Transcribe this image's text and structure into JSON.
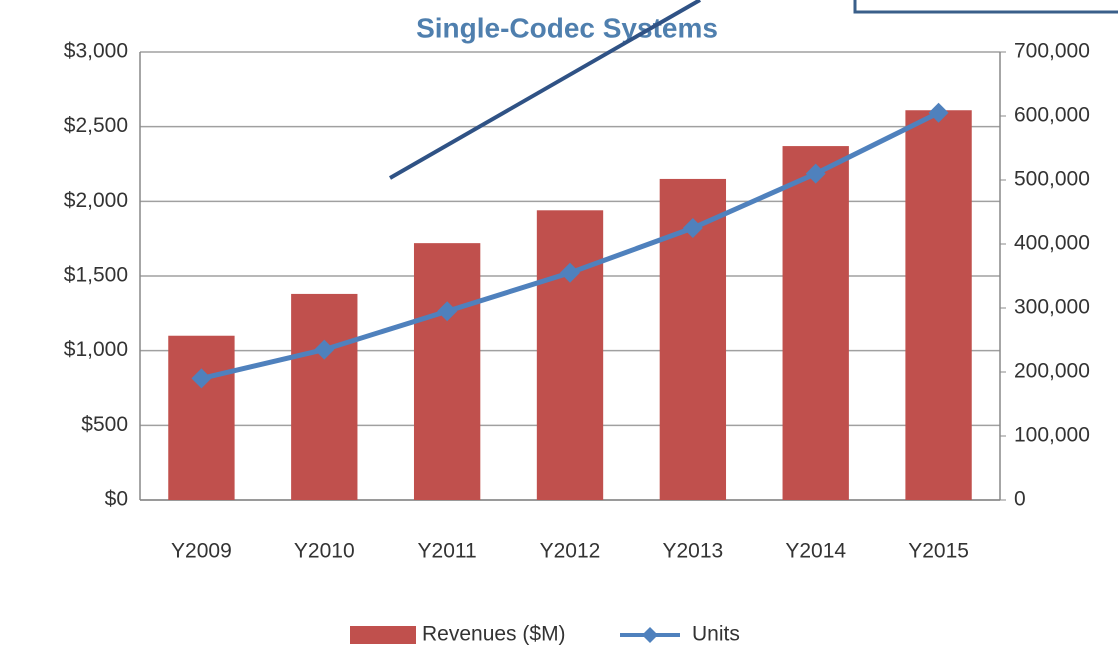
{
  "chart_data": {
    "type": "bar-line",
    "title": "Single-Codec Systems",
    "categories": [
      "Y2009",
      "Y2010",
      "Y2011",
      "Y2012",
      "Y2013",
      "Y2014",
      "Y2015"
    ],
    "series": [
      {
        "name": "Revenues ($M)",
        "type": "bar",
        "color": "#c0504d",
        "values": [
          1100,
          1380,
          1720,
          1940,
          2150,
          2370,
          2610
        ]
      },
      {
        "name": "Units",
        "type": "line",
        "axis": "y2",
        "color": "#4f81bd",
        "values": [
          190000,
          235000,
          295000,
          355000,
          425000,
          510000,
          605000
        ]
      }
    ],
    "ylim": [
      0,
      3000
    ],
    "yticks": [
      {
        "value": 0,
        "label": "$0"
      },
      {
        "value": 500,
        "label": "$500"
      },
      {
        "value": 1000,
        "label": "$1,000"
      },
      {
        "value": 1500,
        "label": "$1,500"
      },
      {
        "value": 2000,
        "label": "$2,000"
      },
      {
        "value": 2500,
        "label": "$2,500"
      },
      {
        "value": 3000,
        "label": "$3,000"
      }
    ],
    "y2lim": [
      0,
      700000
    ],
    "y2ticks": [
      0,
      {
        "value": 100000,
        "label": "100,000"
      },
      {
        "value": 200000,
        "label": "200,000"
      },
      {
        "value": 300000,
        "label": "300,000"
      },
      {
        "value": 400000,
        "label": "400,000"
      },
      {
        "value": 500000,
        "label": "500,000"
      },
      {
        "value": 600000,
        "label": "600,000"
      },
      {
        "value": 700000,
        "label": "700,000"
      }
    ],
    "grid": true,
    "legend": "bottom"
  }
}
